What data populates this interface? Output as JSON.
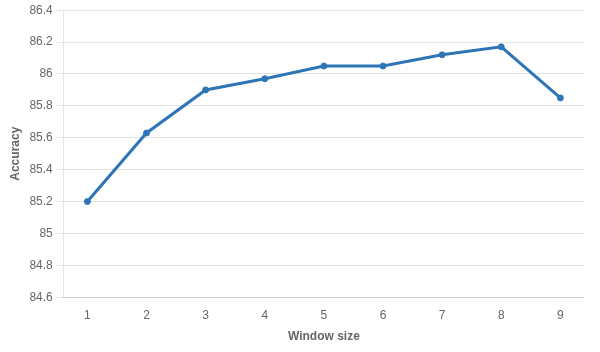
{
  "chart_data": {
    "type": "line",
    "xlabel": "Window size",
    "ylabel": "Accuracy",
    "x": [
      1,
      2,
      3,
      4,
      5,
      6,
      7,
      8,
      9
    ],
    "values": [
      85.2,
      85.63,
      85.9,
      85.97,
      86.05,
      86.05,
      86.12,
      86.17,
      85.85
    ],
    "color": "#2E75B6",
    "marker": "circle",
    "xlim": [
      0.6,
      9.4
    ],
    "xticks": [
      1,
      2,
      3,
      4,
      5,
      6,
      7,
      8,
      9
    ],
    "ylim": [
      84.6,
      86.4
    ],
    "yticks": [
      84.6,
      84.8,
      85,
      85.2,
      85.4,
      85.6,
      85.8,
      86,
      86.2,
      86.4
    ],
    "grid": "y"
  }
}
